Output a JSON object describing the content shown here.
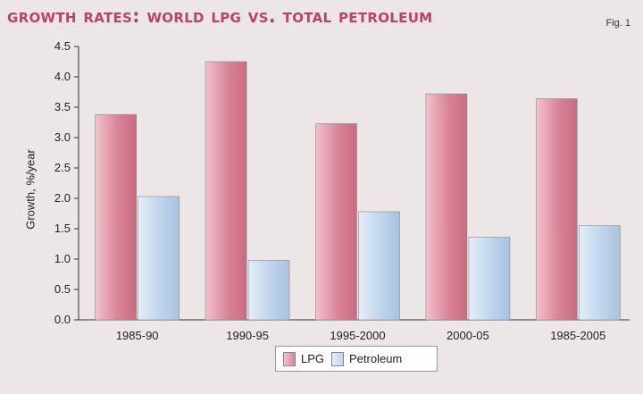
{
  "title": "Growth rates: World LPG vs. total petroleum",
  "fig_label": "Fig. 1",
  "colors": {
    "lpg": "#d98398",
    "lpg_light": "#f3c2cd",
    "petroleum": "#bfd4ec",
    "petroleum_light": "#e4eef9",
    "title": "#b5456b"
  },
  "chart_data": {
    "type": "bar",
    "title": "Growth rates: World LPG vs. total petroleum",
    "xlabel": "",
    "ylabel": "Growth, %/year",
    "ylim": [
      0,
      4.5
    ],
    "yticks": [
      "0.0",
      "0.5",
      "1.0",
      "1.5",
      "2.0",
      "2.5",
      "3.0",
      "3.5",
      "4.0",
      "4.5"
    ],
    "categories": [
      "1985-90",
      "1990-95",
      "1995-2000",
      "2000-05",
      "1985-2005"
    ],
    "series": [
      {
        "name": "LPG",
        "values": [
          3.38,
          4.25,
          3.23,
          3.72,
          3.64
        ]
      },
      {
        "name": "Petroleum",
        "values": [
          2.03,
          0.98,
          1.78,
          1.36,
          1.55
        ]
      }
    ],
    "legend": {
      "position": "bottom-center",
      "labels": [
        "LPG",
        "Petroleum"
      ]
    },
    "grid": false
  }
}
